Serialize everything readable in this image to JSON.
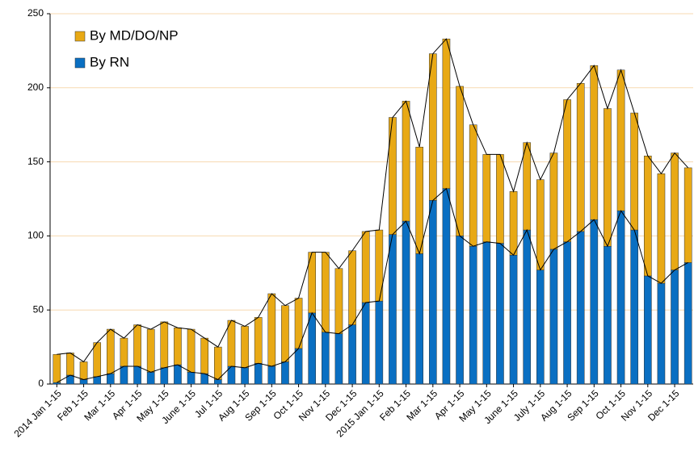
{
  "chart_data": {
    "type": "bar",
    "stacked": true,
    "categories": [
      "2014 Jan 1-15",
      null,
      "Feb 1-15",
      null,
      "Mar 1-15",
      null,
      "Apr 1-15",
      null,
      "May 1-15",
      null,
      "June 1-15",
      null,
      "Jul 1-15",
      null,
      "Aug 1-15",
      null,
      "Sep 1-15",
      null,
      "Oct 1-15",
      null,
      "Nov 1-15",
      null,
      "Dec 1-15",
      null,
      "2015 Jan 1-15",
      null,
      "Feb 1-15",
      null,
      "Mar 1-15",
      null,
      "Apr 1-15",
      null,
      "May 1-15",
      null,
      "June 1-15",
      null,
      "July 1-15",
      null,
      "Aug 1-15",
      null,
      "Sep 1-15",
      null,
      "Oct 1-15",
      null,
      "Nov 1-15",
      null,
      "Dec 1-15",
      null
    ],
    "series": [
      {
        "name": "By RN",
        "color": "#0a6fc2",
        "values": [
          1,
          6,
          3,
          5,
          7,
          12,
          12,
          8,
          11,
          13,
          8,
          7,
          3,
          12,
          11,
          14,
          12,
          15,
          24,
          48,
          35,
          34,
          40,
          55,
          56,
          101,
          110,
          88,
          124,
          132,
          100,
          93,
          96,
          95,
          87,
          104,
          77,
          91,
          96,
          103,
          111,
          93,
          117,
          104,
          73,
          68,
          77,
          82
        ]
      },
      {
        "name": "By MD/DO/NP",
        "color": "#e8a915",
        "values": [
          19,
          15,
          12,
          23,
          30,
          19,
          28,
          29,
          31,
          25,
          29,
          24,
          22,
          31,
          28,
          31,
          49,
          38,
          34,
          41,
          54,
          44,
          50,
          48,
          48,
          79,
          81,
          72,
          99,
          101,
          101,
          82,
          59,
          60,
          43,
          59,
          61,
          65,
          96,
          100,
          104,
          93,
          95,
          79,
          81,
          74,
          79,
          64
        ]
      }
    ],
    "ylim": [
      0,
      250
    ],
    "yticks": [
      0,
      50,
      100,
      150,
      200,
      250
    ],
    "grid": true,
    "legend": "upper left",
    "connector_lines": true
  }
}
